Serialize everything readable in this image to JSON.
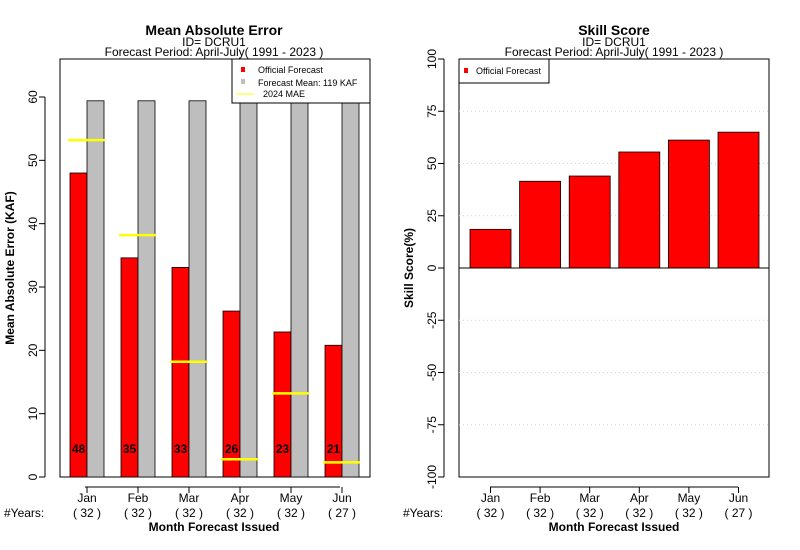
{
  "chart_data": [
    {
      "type": "bar",
      "title": "Mean Absolute Error",
      "subtitle_lines": [
        "ID= DCRU1",
        "Forecast Period: April-July( 1991 - 2023 )"
      ],
      "xlabel": "Month Forecast Issued",
      "ylabel": "Mean Absolute Error (KAF)",
      "ylim": [
        0,
        66
      ],
      "yticks": [
        0,
        10,
        20,
        30,
        40,
        50,
        60
      ],
      "categories": [
        "Jan",
        "Feb",
        "Mar",
        "Apr",
        "May",
        "Jun"
      ],
      "years_label": "#Years:",
      "years": [
        "( 32 )",
        "( 32 )",
        "( 32 )",
        "( 32 )",
        "( 32 )",
        "( 27 )"
      ],
      "series": [
        {
          "name": "Official Forecast",
          "color": "#ff0000",
          "values": [
            48,
            34.6,
            33.1,
            26.2,
            22.9,
            20.8
          ],
          "labels": [
            "48",
            "35",
            "33",
            "26",
            "23",
            "21"
          ]
        },
        {
          "name": "Forecast Mean: 119 KAF",
          "color": "#bebebe",
          "values": [
            59.4,
            59.4,
            59.4,
            59.4,
            59.4,
            59.6
          ]
        },
        {
          "name": "2024  MAE",
          "color": "#ffff00",
          "values": [
            53.2,
            38.2,
            18.2,
            2.8,
            13.2,
            2.3
          ]
        }
      ],
      "legend_position": "top-right",
      "grid": false
    },
    {
      "type": "bar",
      "title": "Skill Score",
      "subtitle_lines": [
        "ID= DCRU1",
        "Forecast Period: April-July( 1991 - 2023 )"
      ],
      "xlabel": "Month Forecast Issued",
      "ylabel": "Skill Score(%)",
      "ylim": [
        -100,
        100
      ],
      "yticks": [
        -100,
        -75,
        -50,
        -25,
        0,
        25,
        50,
        75,
        100
      ],
      "categories": [
        "Jan",
        "Feb",
        "Mar",
        "Apr",
        "May",
        "Jun"
      ],
      "years_label": "#Years:",
      "years": [
        "( 32 )",
        "( 32 )",
        "( 32 )",
        "( 32 )",
        "( 32 )",
        "( 27 )"
      ],
      "series": [
        {
          "name": "Official Forecast",
          "color": "#ff0000",
          "values": [
            18.5,
            41.5,
            44,
            55.5,
            61.2,
            65
          ]
        }
      ],
      "legend_position": "top-left",
      "grid": true
    }
  ]
}
